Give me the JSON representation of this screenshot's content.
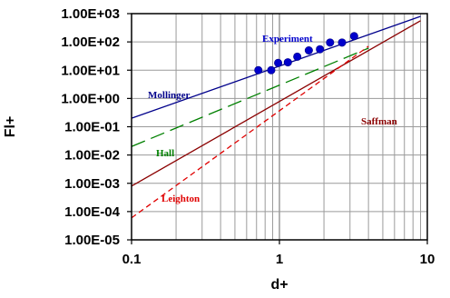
{
  "chart_data": {
    "type": "scatter",
    "x_scale": "log",
    "y_scale": "log",
    "xlim": [
      0.1,
      10
    ],
    "ylim": [
      1e-05,
      1000
    ],
    "xlabel": "d+",
    "ylabel": "Fl+",
    "x_tick_labels": [
      {
        "value": 0.1,
        "label": "0.1"
      },
      {
        "value": 1,
        "label": "1"
      },
      {
        "value": 10,
        "label": "10"
      }
    ],
    "y_tick_labels": [
      {
        "value": 1000,
        "label": "1.00E+03"
      },
      {
        "value": 100,
        "label": "1.00E+02"
      },
      {
        "value": 10,
        "label": "1.00E+01"
      },
      {
        "value": 1,
        "label": "1.00E+00"
      },
      {
        "value": 0.1,
        "label": "1.00E-01"
      },
      {
        "value": 0.01,
        "label": "1.00E-02"
      },
      {
        "value": 0.001,
        "label": "1.00E-03"
      },
      {
        "value": 0.0001,
        "label": "1.00E-04"
      },
      {
        "value": 1e-05,
        "label": "1.00E-05"
      }
    ],
    "grid": true,
    "series": [
      {
        "name": "Experiment",
        "kind": "points",
        "color": "#0000cc",
        "x": [
          0.72,
          0.88,
          0.98,
          1.14,
          1.32,
          1.58,
          1.88,
          2.2,
          2.65,
          3.2
        ],
        "y": [
          10,
          10,
          18,
          19,
          30,
          50,
          55,
          95,
          95,
          160
        ]
      },
      {
        "name": "Mollinger",
        "kind": "line",
        "color": "#00008b",
        "dash": "solid",
        "x": [
          0.1,
          9
        ],
        "y": [
          0.2,
          800
        ]
      },
      {
        "name": "Hall",
        "kind": "line",
        "color": "#008000",
        "dash": "long-dash",
        "x": [
          0.1,
          4
        ],
        "y": [
          0.02,
          60
        ]
      },
      {
        "name": "Saffman",
        "kind": "line",
        "color": "#8b0000",
        "dash": "solid",
        "x": [
          0.1,
          9
        ],
        "y": [
          0.0008,
          560
        ]
      },
      {
        "name": "Leighton",
        "kind": "line",
        "color": "#e00000",
        "dash": "short-dash",
        "x": [
          0.1,
          4
        ],
        "y": [
          6e-05,
          70
        ]
      }
    ]
  }
}
